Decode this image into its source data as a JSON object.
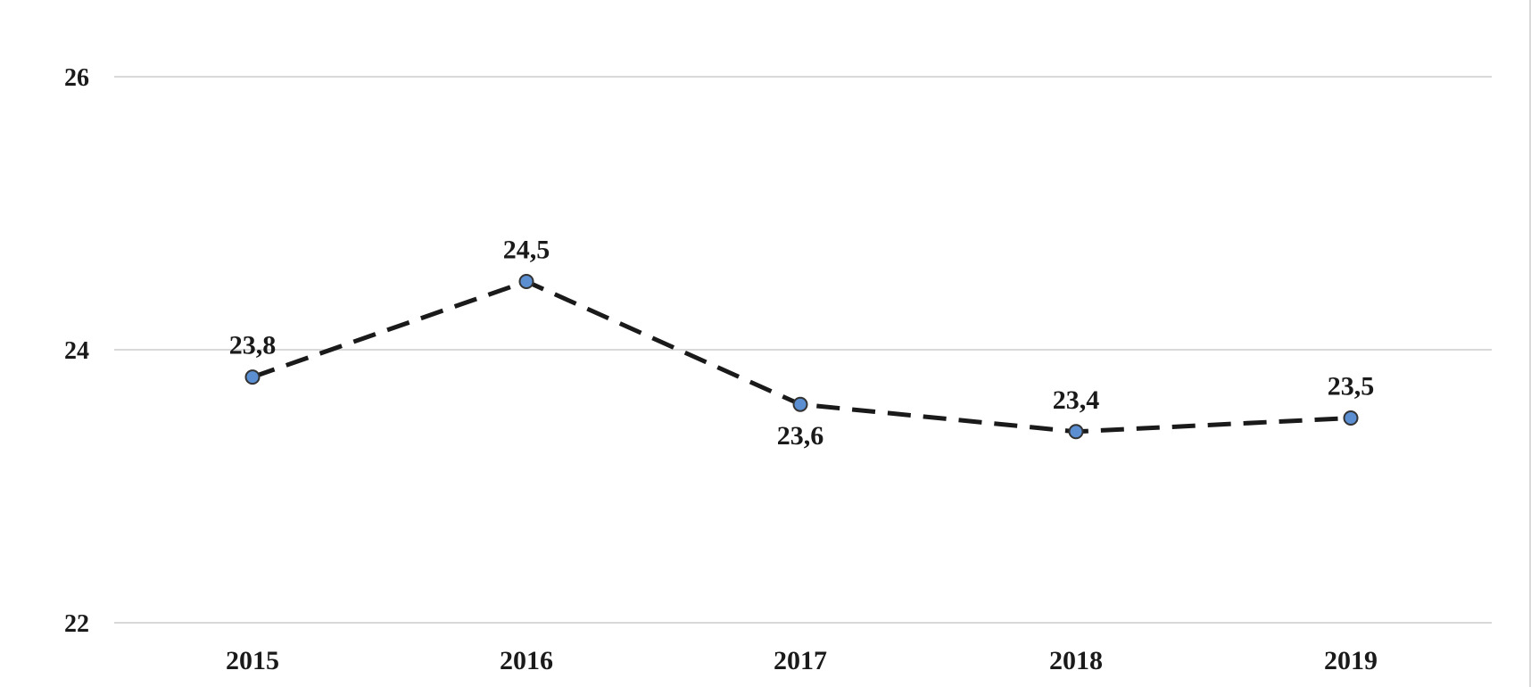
{
  "chart_data": {
    "type": "line",
    "categories": [
      "2015",
      "2016",
      "2017",
      "2018",
      "2019"
    ],
    "series": [
      {
        "values": [
          23.8,
          24.5,
          23.6,
          23.4,
          23.5
        ],
        "data_labels": [
          "23,8",
          "24,5",
          "23,6",
          "23,4",
          "23,5"
        ],
        "line_color": "#1a1a1a",
        "marker_color": "#5b8fd1",
        "line_style": "dashed"
      }
    ],
    "y_ticks": [
      {
        "value": 22,
        "label": "22"
      },
      {
        "value": 24,
        "label": "24"
      },
      {
        "value": 26,
        "label": "26"
      }
    ],
    "ylim": [
      22,
      26
    ],
    "title": "",
    "xlabel": "",
    "ylabel": "",
    "grid": true,
    "legend": "none"
  },
  "colors": {
    "gridline": "#d9d9d9",
    "text": "#1a1a1a"
  }
}
